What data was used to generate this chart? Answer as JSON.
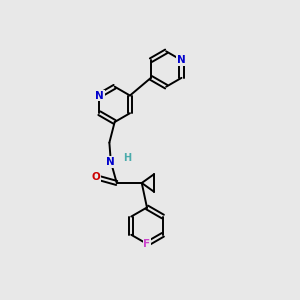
{
  "background_color": "#e8e8e8",
  "bond_color": "#000000",
  "figsize": [
    3.0,
    3.0
  ],
  "dpi": 100,
  "lw": 1.4,
  "rc": 0.6,
  "N1_color": "#0000cc",
  "N2_color": "#0000cc",
  "N_amide_color": "#0000cc",
  "H_color": "#4aabab",
  "O_color": "#cc0000",
  "F_color": "#cc44cc",
  "xlim": [
    0,
    10
  ],
  "ylim": [
    0,
    10
  ]
}
